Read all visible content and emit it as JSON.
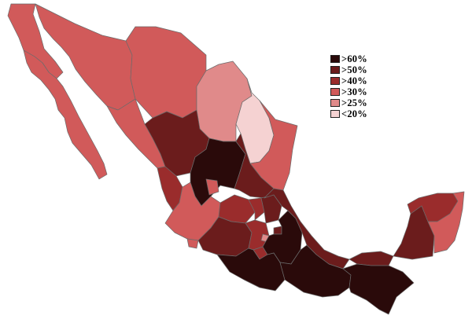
{
  "legend": {
    "items": [
      {
        "label": ">60%",
        "color": "#2a0a0a"
      },
      {
        "label": ">50%",
        "color": "#6b1c1c"
      },
      {
        "label": ">40%",
        "color": "#9a2c2c"
      },
      {
        "label": ">30%",
        "color": "#d15a5a"
      },
      {
        "label": ">25%",
        "color": "#e08a8a"
      },
      {
        "label": "<20%",
        "color": "#f5d2d2"
      }
    ]
  }
}
